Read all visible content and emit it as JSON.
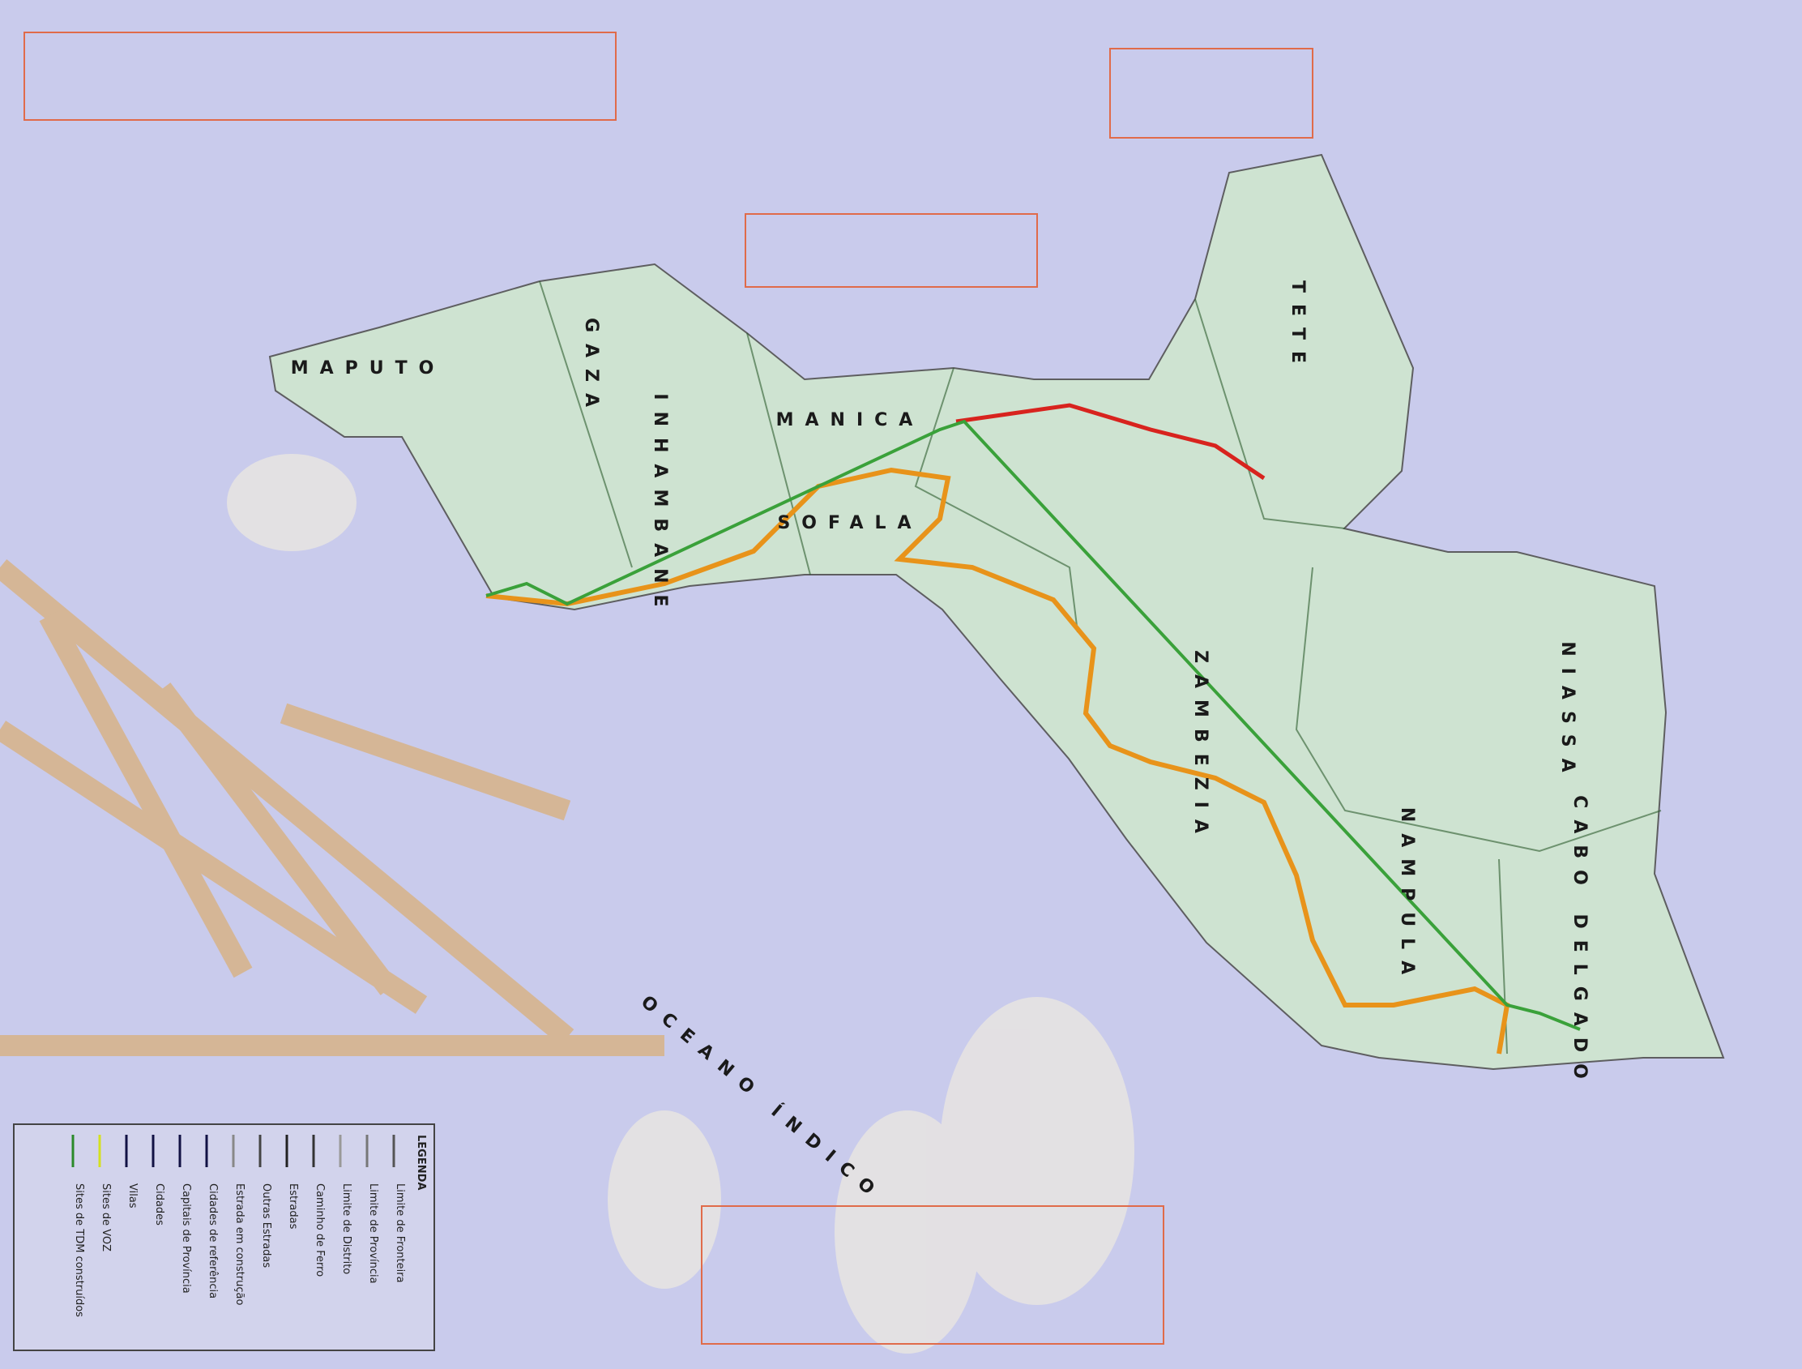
{
  "map": {
    "provinces": [
      "MAPUTO",
      "GAZA",
      "INHAMBANE",
      "MANICA",
      "SOFALA",
      "TETE",
      "ZAMBEZIA",
      "NAMPULA",
      "NIASSA",
      "CABO DELGADO"
    ],
    "ocean": "OCEANO ÍNDICO",
    "legend": {
      "title": "LEGENDA",
      "items": [
        "Limite de Fronteira",
        "Limite de Província",
        "Limite de Distrito",
        "Caminho de Ferro",
        "Estradas",
        "Outras Estradas",
        "Estrada em construção",
        "Cidades de referência",
        "Capitais de Província",
        "Cidades",
        "Vilas",
        "Sites de VOZ",
        "Sites de TDM construídos"
      ]
    }
  }
}
